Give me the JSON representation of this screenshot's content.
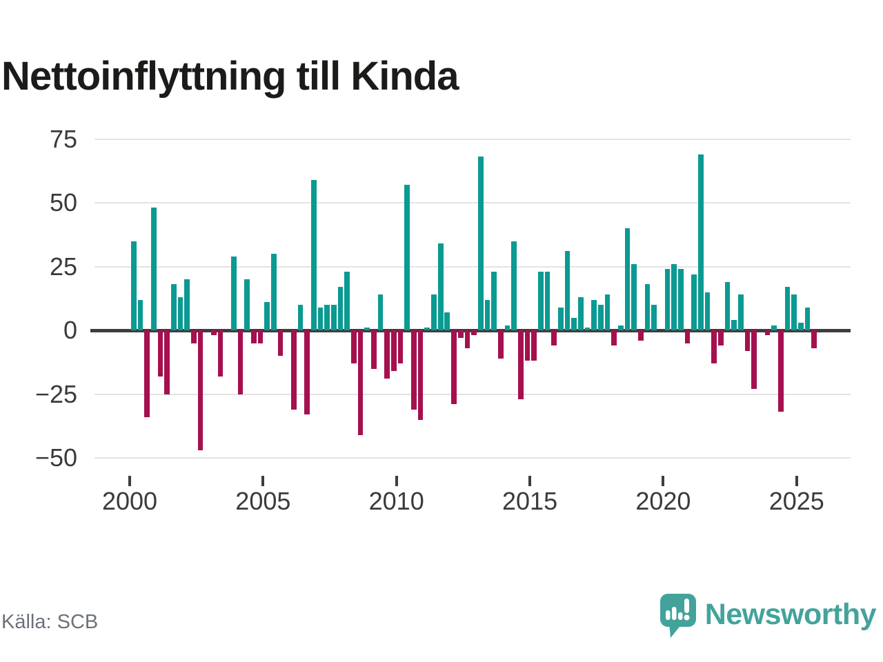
{
  "title": "Nettoinflyttning till Kinda",
  "source": "Källa: SCB",
  "brand": {
    "name": "Newsworthy",
    "color": "#43a39b",
    "icon": "newsworthy-speech-bubble-bar-chart-icon"
  },
  "chart_data": {
    "type": "bar",
    "title": "Nettoinflyttning till Kinda",
    "frequency": "quarterly",
    "start": "2000Q1",
    "end": "2025Q3",
    "xlabel": "",
    "ylabel": "",
    "ylim": [
      -50,
      75
    ],
    "grid": "horizontal",
    "legend": "none",
    "positive_color": "#0b9a92",
    "negative_color": "#a5104f",
    "y_ticks": [
      75,
      50,
      25,
      0,
      -25,
      -50
    ],
    "x_ticks": [
      "2000",
      "2005",
      "2010",
      "2015",
      "2020",
      "2025"
    ],
    "series": [
      {
        "name": "Nettoinflyttning",
        "values": [
          35,
          12,
          -34,
          48,
          -18,
          -25,
          18,
          13,
          20,
          -5,
          -47,
          0,
          -2,
          -18,
          0,
          29,
          -25,
          20,
          -5,
          -5,
          11,
          30,
          -10,
          0,
          -31,
          10,
          -33,
          59,
          9,
          10,
          10,
          17,
          23,
          -13,
          -41,
          1,
          -15,
          14,
          -19,
          -16,
          -13,
          57,
          -31,
          -35,
          1,
          14,
          34,
          7,
          -29,
          -3,
          -7,
          -2,
          68,
          12,
          23,
          -11,
          2,
          35,
          -27,
          -12,
          -12,
          23,
          23,
          -6,
          9,
          31,
          5,
          13,
          1,
          12,
          10,
          14,
          -6,
          2,
          40,
          26,
          -4,
          18,
          10,
          0,
          24,
          26,
          24,
          -5,
          22,
          69,
          15,
          -13,
          -6,
          19,
          4,
          14,
          -8,
          -23,
          0,
          -2,
          2,
          -32,
          17,
          14,
          3,
          9,
          -7
        ]
      }
    ]
  }
}
